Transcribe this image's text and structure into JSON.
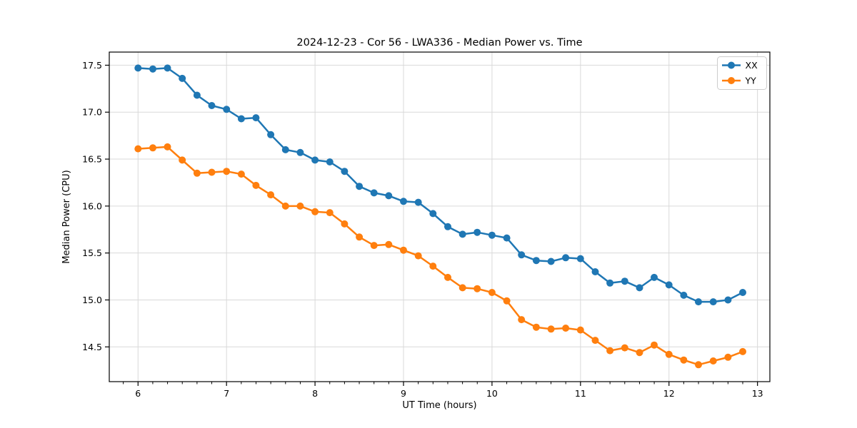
{
  "chart_data": {
    "type": "line",
    "title": "2024-12-23 - Cor 56 - LWA336 - Median Power vs. Time",
    "xlabel": "UT Time (hours)",
    "ylabel": "Median Power (CPU)",
    "xlim": [
      5.675,
      13.14
    ],
    "ylim": [
      14.13,
      17.64
    ],
    "xticks": [
      6,
      7,
      8,
      9,
      10,
      11,
      12,
      13
    ],
    "yticks": [
      14.5,
      15.0,
      15.5,
      16.0,
      16.5,
      17.0,
      17.5
    ],
    "x_minor_tick_step": 0.1667,
    "grid": "major-both",
    "legend_position": "upper-right",
    "background_color": "#ffffff",
    "grid_color": "#d9d9d9",
    "spine_color": "#000000",
    "x": [
      6.0,
      6.167,
      6.333,
      6.5,
      6.667,
      6.833,
      7.0,
      7.167,
      7.333,
      7.5,
      7.667,
      7.833,
      8.0,
      8.167,
      8.333,
      8.5,
      8.667,
      8.833,
      9.0,
      9.167,
      9.333,
      9.5,
      9.667,
      9.833,
      10.0,
      10.167,
      10.333,
      10.5,
      10.667,
      10.833,
      11.0,
      11.167,
      11.333,
      11.5,
      11.667,
      11.833,
      12.0,
      12.167,
      12.333,
      12.5,
      12.667,
      12.833
    ],
    "series": [
      {
        "name": "XX",
        "color": "#1f77b4",
        "values": [
          17.47,
          17.46,
          17.47,
          17.36,
          17.18,
          17.07,
          17.03,
          16.93,
          16.94,
          16.76,
          16.6,
          16.57,
          16.49,
          16.47,
          16.37,
          16.21,
          16.14,
          16.11,
          16.05,
          16.04,
          15.92,
          15.78,
          15.7,
          15.72,
          15.69,
          15.66,
          15.48,
          15.42,
          15.41,
          15.45,
          15.44,
          15.3,
          15.18,
          15.2,
          15.13,
          15.24,
          15.16,
          15.05,
          14.98,
          14.98,
          15.0,
          15.08
        ]
      },
      {
        "name": "YY",
        "color": "#ff7f0e",
        "values": [
          16.61,
          16.62,
          16.63,
          16.49,
          16.35,
          16.36,
          16.37,
          16.34,
          16.22,
          16.12,
          16.0,
          16.0,
          15.94,
          15.93,
          15.81,
          15.67,
          15.58,
          15.59,
          15.53,
          15.47,
          15.36,
          15.24,
          15.13,
          15.12,
          15.08,
          14.99,
          14.79,
          14.71,
          14.69,
          14.7,
          14.68,
          14.57,
          14.46,
          14.49,
          14.44,
          14.52,
          14.42,
          14.36,
          14.31,
          14.35,
          14.39,
          14.45
        ]
      }
    ]
  }
}
